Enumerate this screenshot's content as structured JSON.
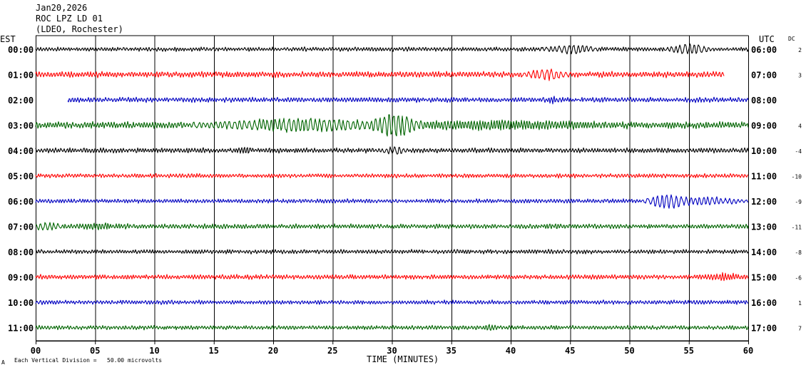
{
  "header": {
    "date": "Jan20,2026",
    "station": "ROC LPZ LD 01",
    "network": "(LDEO, Rochester)"
  },
  "left_axis_title": "EST",
  "right_axis_title": "UTC",
  "dc_title": "DC",
  "footer": {
    "note": "Each Vertical Division =   50.00 microvolts",
    "note_mark": "A"
  },
  "colors": {
    "black": "#000000",
    "red": "#ff0000",
    "blue": "#0000c0",
    "green": "#006400",
    "grid": "#000000"
  },
  "chart_data": {
    "type": "line",
    "title": "",
    "xlabel": "TIME (MINUTES)",
    "xlim": [
      0,
      60
    ],
    "x_ticks": [
      "00",
      "05",
      "10",
      "15",
      "20",
      "25",
      "30",
      "35",
      "40",
      "45",
      "50",
      "55",
      "60"
    ],
    "grid": true,
    "rows": [
      {
        "est": "00:00",
        "utc": "06:00",
        "dc": "2",
        "color": "black",
        "start": 0,
        "end": 60,
        "base_amp": 1.0,
        "events": [
          {
            "at": 45,
            "dur": 2.5,
            "amp": 4.0
          },
          {
            "at": 55,
            "dur": 2.0,
            "amp": 6.0
          }
        ]
      },
      {
        "est": "01:00",
        "utc": "07:00",
        "dc": "3",
        "color": "red",
        "start": 0,
        "end": 58,
        "base_amp": 1.4,
        "events": [
          {
            "at": 43,
            "dur": 2.0,
            "amp": 4.5
          }
        ]
      },
      {
        "est": "02:00",
        "utc": "08:00",
        "dc": "",
        "color": "blue",
        "start": 2.7,
        "end": 60,
        "base_amp": 1.2,
        "events": [
          {
            "at": 43.5,
            "dur": 0.5,
            "amp": 3.0
          }
        ]
      },
      {
        "est": "03:00",
        "utc": "09:00",
        "dc": "4",
        "color": "green",
        "start": 0,
        "end": 60,
        "base_amp": 1.6,
        "events": [
          {
            "at": 22,
            "dur": 9.0,
            "amp": 6.0
          },
          {
            "at": 30.2,
            "dur": 2.5,
            "amp": 12.0
          },
          {
            "at": 38,
            "dur": 14.0,
            "amp": 3.0
          }
        ]
      },
      {
        "est": "04:00",
        "utc": "10:00",
        "dc": "-4",
        "color": "black",
        "start": 0,
        "end": 60,
        "base_amp": 1.2,
        "events": [
          {
            "at": 17.5,
            "dur": 1.0,
            "amp": 3.0
          },
          {
            "at": 30.3,
            "dur": 1.0,
            "amp": 3.5
          }
        ]
      },
      {
        "est": "05:00",
        "utc": "11:00",
        "dc": "-10",
        "color": "red",
        "start": 0,
        "end": 60,
        "base_amp": 1.0,
        "events": []
      },
      {
        "est": "06:00",
        "utc": "12:00",
        "dc": "-9",
        "color": "blue",
        "start": 0,
        "end": 60,
        "base_amp": 1.0,
        "events": [
          {
            "at": 53,
            "dur": 2.0,
            "amp": 8.0
          },
          {
            "at": 56,
            "dur": 4.0,
            "amp": 4.0
          }
        ]
      },
      {
        "est": "07:00",
        "utc": "13:00",
        "dc": "-11",
        "color": "green",
        "start": 0,
        "end": 60,
        "base_amp": 1.1,
        "events": [
          {
            "at": 0.8,
            "dur": 1.5,
            "amp": 3.5
          },
          {
            "at": 5.5,
            "dur": 3.0,
            "amp": 2.0
          }
        ]
      },
      {
        "est": "08:00",
        "utc": "14:00",
        "dc": "-8",
        "color": "black",
        "start": 0,
        "end": 60,
        "base_amp": 1.0,
        "events": []
      },
      {
        "est": "09:00",
        "utc": "15:00",
        "dc": "-6",
        "color": "red",
        "start": 0,
        "end": 60,
        "base_amp": 1.1,
        "events": [
          {
            "at": 58,
            "dur": 2.0,
            "amp": 2.5
          }
        ]
      },
      {
        "est": "10:00",
        "utc": "16:00",
        "dc": "1",
        "color": "blue",
        "start": 0,
        "end": 60,
        "base_amp": 1.0,
        "events": []
      },
      {
        "est": "11:00",
        "utc": "17:00",
        "dc": "7",
        "color": "green",
        "start": 0,
        "end": 60,
        "base_amp": 1.0,
        "events": [
          {
            "at": 38.2,
            "dur": 0.6,
            "amp": 2.5
          }
        ]
      }
    ]
  }
}
